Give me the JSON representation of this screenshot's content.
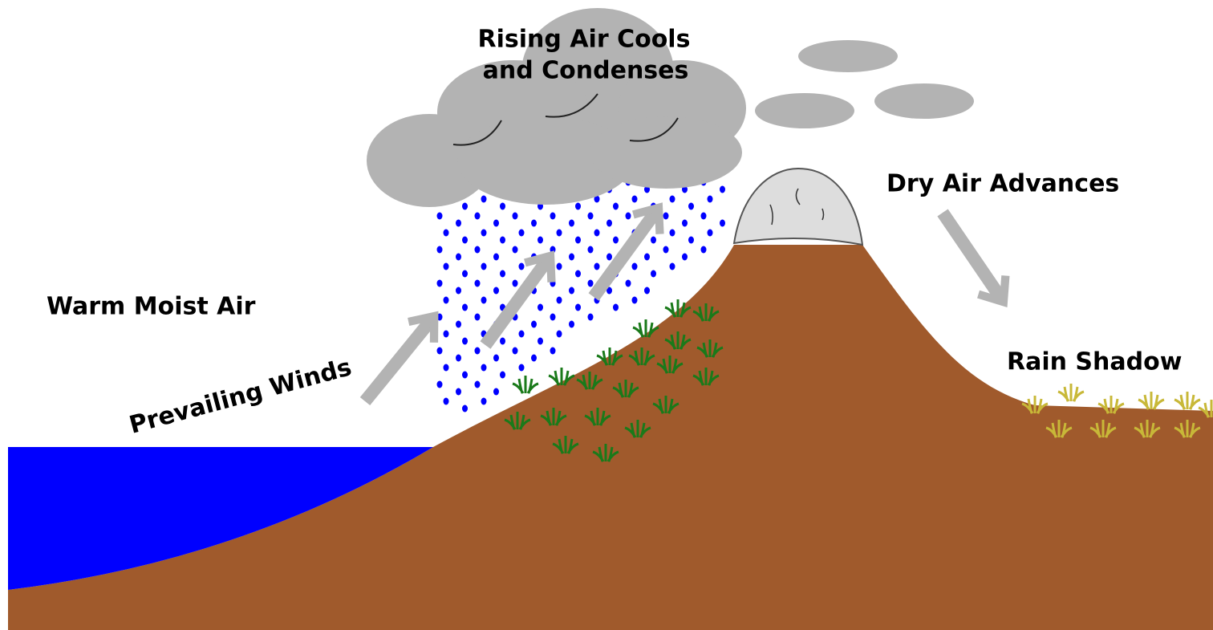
{
  "labels": {
    "rising_air": [
      "Rising Air Cools",
      "and Condenses"
    ],
    "dry_air": "Dry Air Advances",
    "warm_air": "Warm Moist Air",
    "prevailing_winds": "Prevailing Winds",
    "rain_shadow": "Rain Shadow"
  }
}
